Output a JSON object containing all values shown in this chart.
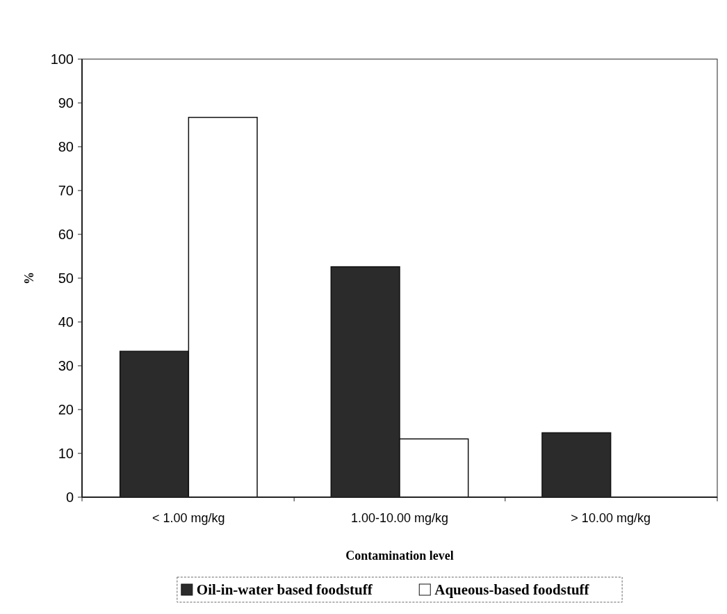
{
  "chart_data": {
    "type": "bar",
    "xlabel": "Contamination level",
    "ylabel": "%",
    "categories": [
      "< 1.00 mg/kg",
      "1.00-10.00 mg/kg",
      "> 10.00 mg/kg"
    ],
    "series": [
      {
        "name": "Oil-in-water based foodstuff",
        "color": "#2b2b2b",
        "values": [
          33.3,
          52.6,
          14.7
        ]
      },
      {
        "name": "Aqueous-based foodstuff",
        "color": "#ffffff",
        "values": [
          86.7,
          13.3,
          0
        ]
      }
    ],
    "ylim": [
      0,
      100
    ],
    "yticks": [
      0,
      10,
      20,
      30,
      40,
      50,
      60,
      70,
      80,
      90,
      100
    ],
    "grid": false,
    "legend": "bottom"
  }
}
